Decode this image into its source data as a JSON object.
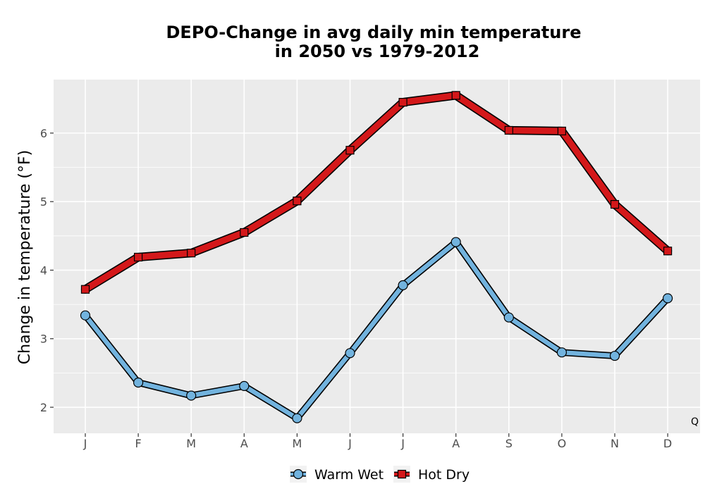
{
  "chart_data": {
    "type": "line",
    "title": [
      "DEPO-Change in avg daily min temperature",
      "in 2050 vs 1979-2012"
    ],
    "xlabel": "",
    "ylabel": "Change in temperature (°F)",
    "categories": [
      "J",
      "F",
      "M",
      "A",
      "M",
      "J",
      "J",
      "A",
      "S",
      "O",
      "N",
      "D"
    ],
    "yticks": [
      2,
      3,
      4,
      5,
      6
    ],
    "ylim": [
      1.62,
      6.78
    ],
    "grid": true,
    "legend_position": "bottom",
    "annotation": "Q",
    "series": [
      {
        "name": "Warm Wet",
        "marker": "circle",
        "color": "#72b3de",
        "values": [
          3.34,
          2.36,
          2.17,
          2.31,
          1.84,
          2.79,
          3.78,
          4.41,
          3.31,
          2.8,
          2.75,
          3.59
        ]
      },
      {
        "name": "Hot Dry",
        "marker": "square",
        "color": "#d4181a",
        "values": [
          3.72,
          4.19,
          4.25,
          4.55,
          5.01,
          5.75,
          6.45,
          6.55,
          6.04,
          6.03,
          4.96,
          4.28
        ]
      }
    ],
    "colors": {
      "panel_bg": "#ebebeb",
      "grid": "#ffffff",
      "outline": "#000000"
    }
  }
}
